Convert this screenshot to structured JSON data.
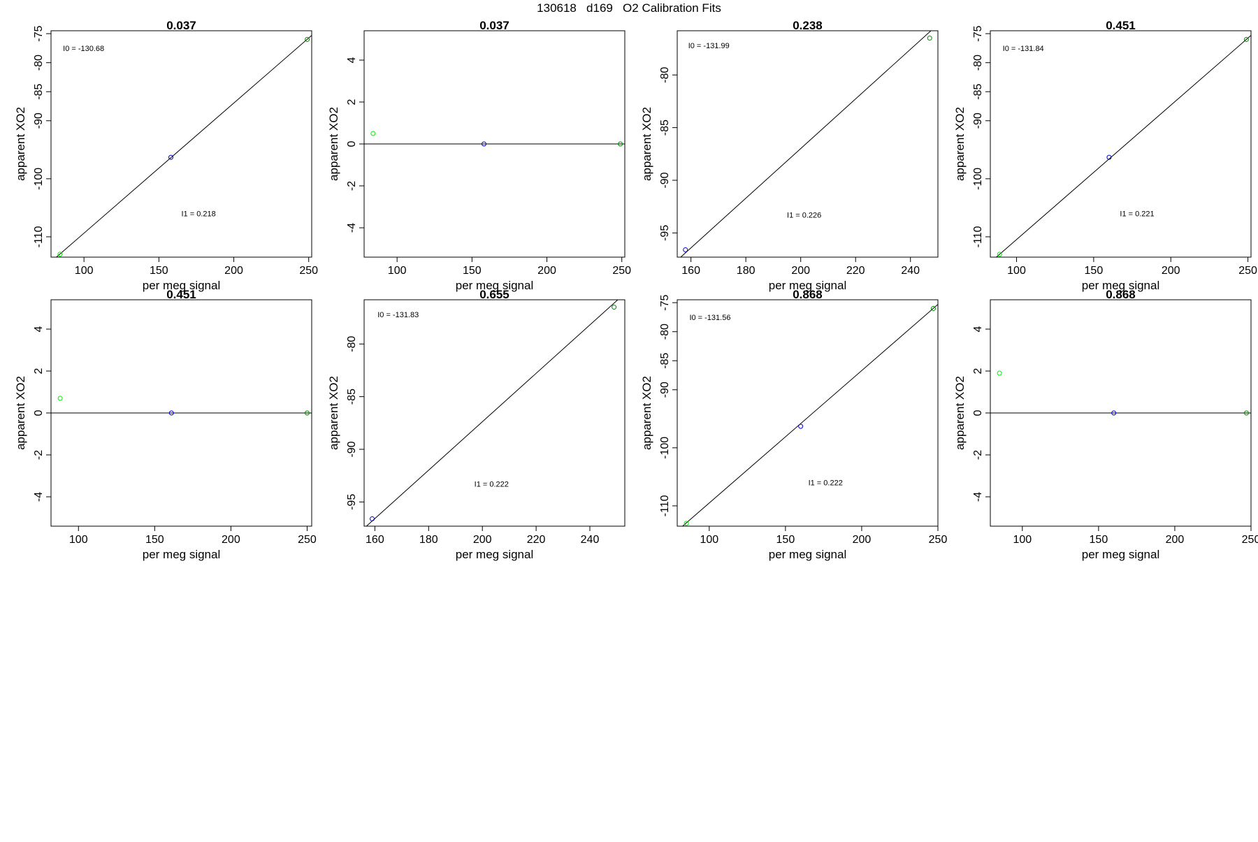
{
  "title": "130618   d169   O2 Calibration Fits",
  "chart_data": [
    {
      "type": "scatter",
      "title": "0.037",
      "xlabel": "per meg signal",
      "ylabel": "apparent XO2",
      "xlim": [
        78,
        252
      ],
      "ylim": [
        -113.5,
        -74.5
      ],
      "xticks": [
        100,
        150,
        200,
        250
      ],
      "yticks": [
        -110,
        -100,
        -90,
        -85,
        -80,
        -75
      ],
      "points": [
        {
          "x": 84,
          "y": -113,
          "color": "#00ee00"
        },
        {
          "x": 158,
          "y": -96.3,
          "color": "#0000cc"
        },
        {
          "x": 249,
          "y": -76,
          "color": "#008800"
        }
      ],
      "line": [
        [
          78,
          -114.3
        ],
        [
          252,
          -75.3
        ]
      ],
      "annotations": [
        {
          "text": "I0 =  -130.68",
          "x": 86,
          "y": -77.5
        },
        {
          "text": "I1 =  0.218",
          "x": 165,
          "y": -106
        }
      ]
    },
    {
      "type": "scatter",
      "title": "0.037",
      "xlabel": "per meg signal",
      "ylabel": "apparent XO2",
      "xlim": [
        78,
        252
      ],
      "ylim": [
        -5.4,
        5.4
      ],
      "xticks": [
        100,
        150,
        200,
        250
      ],
      "yticks": [
        -4,
        -2,
        0,
        2,
        4
      ],
      "points": [
        {
          "x": 84,
          "y": 0.5,
          "color": "#00ee00"
        },
        {
          "x": 158,
          "y": 0,
          "color": "#0000cc"
        },
        {
          "x": 249,
          "y": 0,
          "color": "#008800"
        }
      ],
      "line": [
        [
          78,
          0
        ],
        [
          252,
          0
        ]
      ],
      "annotations": []
    },
    {
      "type": "scatter",
      "title": "0.238",
      "xlabel": "per meg signal",
      "ylabel": "apparent XO2",
      "xlim": [
        155,
        250
      ],
      "ylim": [
        -97.3,
        -75.8
      ],
      "xticks": [
        160,
        180,
        200,
        220,
        240
      ],
      "yticks": [
        -95,
        -90,
        -85,
        -80
      ],
      "points": [
        {
          "x": 158,
          "y": -96.6,
          "color": "#0000cc"
        },
        {
          "x": 247,
          "y": -76.5,
          "color": "#008800"
        }
      ],
      "line": [
        [
          155,
          -97.6
        ],
        [
          250,
          -75.2
        ]
      ],
      "annotations": [
        {
          "text": "I0 =  -131.99",
          "x": 159,
          "y": -77.2
        },
        {
          "text": "I1 =  0.226",
          "x": 195,
          "y": -93.3
        }
      ]
    },
    {
      "type": "scatter",
      "title": "0.451",
      "xlabel": "per meg signal",
      "ylabel": "apparent XO2",
      "xlim": [
        83,
        252
      ],
      "ylim": [
        -113.5,
        -74.5
      ],
      "xticks": [
        100,
        150,
        200,
        250
      ],
      "yticks": [
        -110,
        -100,
        -90,
        -85,
        -80,
        -75
      ],
      "points": [
        {
          "x": 89,
          "y": -113,
          "color": "#00ee00"
        },
        {
          "x": 160,
          "y": -96.3,
          "color": "#0000cc"
        },
        {
          "x": 249,
          "y": -76,
          "color": "#008800"
        }
      ],
      "line": [
        [
          83,
          -114.4
        ],
        [
          252,
          -75.3
        ]
      ],
      "annotations": [
        {
          "text": "I0 =  -131.84",
          "x": 91,
          "y": -77.5
        },
        {
          "text": "I1 =  0.221",
          "x": 167,
          "y": -106
        }
      ]
    },
    {
      "type": "scatter",
      "title": "0.451",
      "xlabel": "per meg signal",
      "ylabel": "apparent XO2",
      "xlim": [
        82,
        253
      ],
      "ylim": [
        -5.4,
        5.4
      ],
      "xticks": [
        100,
        150,
        200,
        250
      ],
      "yticks": [
        -4,
        -2,
        0,
        2,
        4
      ],
      "points": [
        {
          "x": 88,
          "y": 0.7,
          "color": "#00ee00"
        },
        {
          "x": 161,
          "y": 0,
          "color": "#0000cc"
        },
        {
          "x": 250,
          "y": 0,
          "color": "#008800"
        }
      ],
      "line": [
        [
          82,
          0
        ],
        [
          253,
          0
        ]
      ],
      "annotations": []
    },
    {
      "type": "scatter",
      "title": "0.655",
      "xlabel": "per meg signal",
      "ylabel": "apparent XO2",
      "xlim": [
        156,
        253
      ],
      "ylim": [
        -97.3,
        -75.8
      ],
      "xticks": [
        160,
        180,
        200,
        220,
        240
      ],
      "yticks": [
        -95,
        -90,
        -85,
        -80
      ],
      "points": [
        {
          "x": 159,
          "y": -96.6,
          "color": "#0000cc"
        },
        {
          "x": 249,
          "y": -76.5,
          "color": "#008800"
        }
      ],
      "line": [
        [
          156,
          -97.5
        ],
        [
          253,
          -75.2
        ]
      ],
      "annotations": [
        {
          "text": "I0 =  -131.83",
          "x": 161,
          "y": -77.2
        },
        {
          "text": "I1 =  0.222",
          "x": 197,
          "y": -93.3
        }
      ]
    },
    {
      "type": "scatter",
      "title": "0.868",
      "xlabel": "per meg signal",
      "ylabel": "apparent XO2",
      "xlim": [
        79,
        250
      ],
      "ylim": [
        -113.5,
        -74.5
      ],
      "xticks": [
        100,
        150,
        200,
        250
      ],
      "yticks": [
        -110,
        -100,
        -90,
        -85,
        -80,
        -75
      ],
      "points": [
        {
          "x": 85,
          "y": -113,
          "color": "#00ee00"
        },
        {
          "x": 160,
          "y": -96.3,
          "color": "#0000cc"
        },
        {
          "x": 247,
          "y": -76,
          "color": "#008800"
        }
      ],
      "line": [
        [
          79,
          -114.3
        ],
        [
          250,
          -75.3
        ]
      ],
      "annotations": [
        {
          "text": "I0 =  -131.56",
          "x": 87,
          "y": -77.5
        },
        {
          "text": "I1 =  0.222",
          "x": 165,
          "y": -106
        }
      ]
    },
    {
      "type": "scatter",
      "title": "0.868",
      "xlabel": "per meg signal",
      "ylabel": "apparent XO2",
      "xlim": [
        79,
        250
      ],
      "ylim": [
        -5.4,
        5.4
      ],
      "xticks": [
        100,
        150,
        200,
        250
      ],
      "yticks": [
        -4,
        -2,
        0,
        2,
        4
      ],
      "points": [
        {
          "x": 85,
          "y": 1.9,
          "color": "#00ee00"
        },
        {
          "x": 160,
          "y": 0,
          "color": "#0000cc"
        },
        {
          "x": 247,
          "y": 0,
          "color": "#008800"
        }
      ],
      "line": [
        [
          79,
          0
        ],
        [
          250,
          0
        ]
      ],
      "annotations": []
    }
  ]
}
